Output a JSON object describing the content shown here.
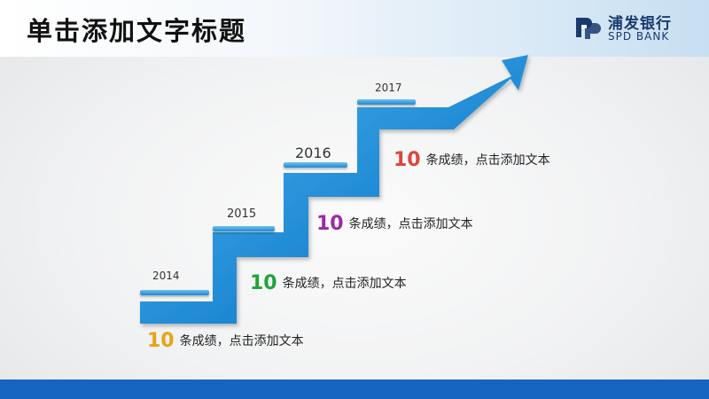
{
  "header": {
    "title": "单击添加文字标题"
  },
  "logo": {
    "name_cn": "浦发银行",
    "name_en": "SPD BANK"
  },
  "steps": [
    {
      "year": "2014",
      "number": "10",
      "text": "条成绩，点击添加文本",
      "number_color": "#e8a317"
    },
    {
      "year": "2015",
      "number": "10",
      "text": "条成绩，点击添加文本",
      "number_color": "#21a33a"
    },
    {
      "year": "2016",
      "number": "10",
      "text": "条成绩，点击添加文本",
      "number_color": "#9b2aa6"
    },
    {
      "year": "2017",
      "number": "10",
      "text": "条成绩，点击添加文本",
      "number_color": "#d9483b"
    }
  ],
  "colors": {
    "stair_blue": "#1e88d4",
    "footer_blue": "#1565c0"
  }
}
